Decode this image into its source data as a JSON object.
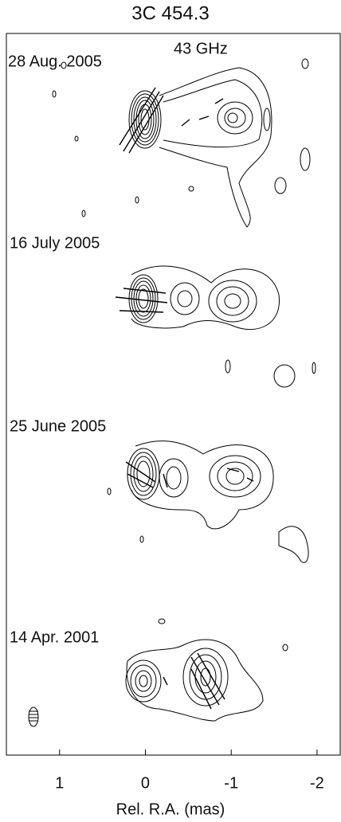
{
  "chart_data": {
    "type": "contour-map",
    "title": "3C 454.3",
    "annotation": "43 GHz",
    "panels": [
      "28 Aug. 2005",
      "16 July 2005",
      "25 June 2005",
      "14 Apr. 2001"
    ],
    "x_label": "Rel. R.A. (mas)",
    "xlim": [
      1.62,
      -2.27
    ],
    "xticks": [
      1,
      0,
      -1,
      -2
    ]
  }
}
